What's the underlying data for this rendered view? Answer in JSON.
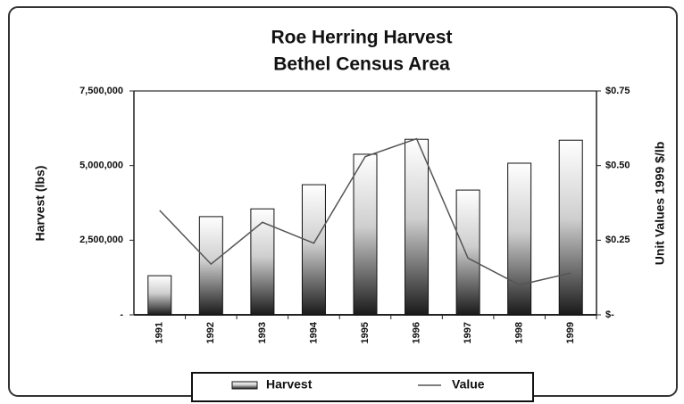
{
  "chart_data": {
    "type": "bar_line",
    "title": "Roe Herring Harvest",
    "subtitle": "Bethel Census Area",
    "y_label": "Harvest (lbs)",
    "y2_label": "Unit Values 1999 $/lb",
    "categories": [
      "1991",
      "1992",
      "1993",
      "1994",
      "1995",
      "1996",
      "1997",
      "1998",
      "1999"
    ],
    "series": [
      {
        "name": "Harvest",
        "type": "bar",
        "color": "#222222",
        "values": [
          1310000,
          3290000,
          3550000,
          4360000,
          5380000,
          5880000,
          4180000,
          5080000,
          5850000
        ]
      },
      {
        "name": "Value",
        "type": "line",
        "axis": "y2",
        "color": "#555555",
        "values": [
          0.35,
          0.17,
          0.31,
          0.24,
          0.53,
          0.59,
          0.19,
          0.1,
          0.14
        ]
      }
    ],
    "ylim": [
      0,
      7500000
    ],
    "yticks": [
      {
        "value": 0,
        "label": "-"
      },
      {
        "value": 2500000,
        "label": "2,500,000"
      },
      {
        "value": 5000000,
        "label": "5,000,000"
      },
      {
        "value": 7500000,
        "label": "7,500,000"
      }
    ],
    "y2lim": [
      0,
      0.75
    ],
    "y2ticks": [
      {
        "value": 0,
        "label": "$-"
      },
      {
        "value": 0.25,
        "label": "$0.25"
      },
      {
        "value": 0.5,
        "label": "$0.50"
      },
      {
        "value": 0.75,
        "label": "$0.75"
      }
    ],
    "grid": false
  }
}
